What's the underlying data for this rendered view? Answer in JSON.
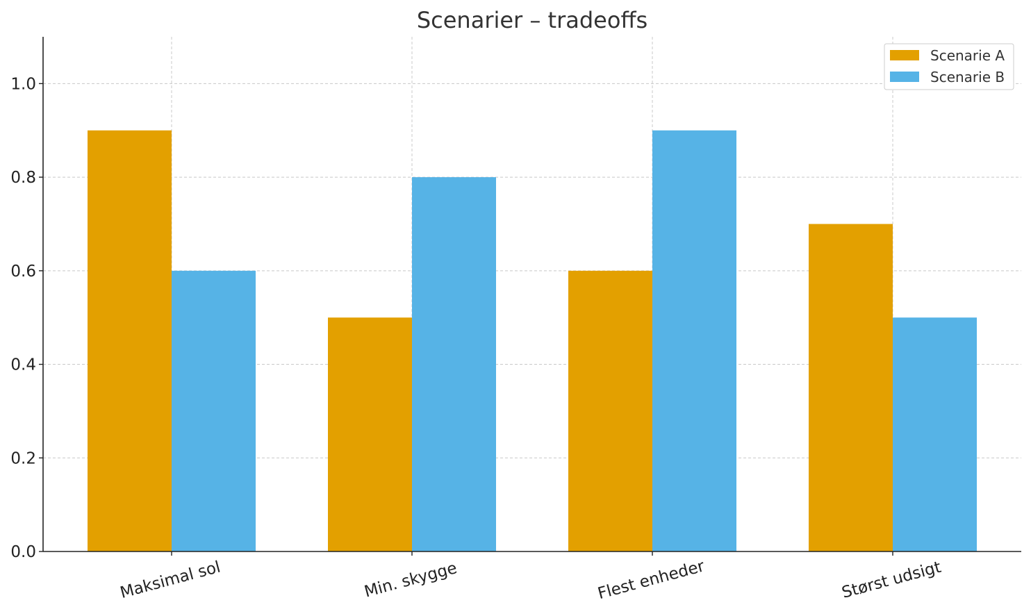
{
  "chart_data": {
    "type": "bar",
    "title": "Scenarier – tradeoffs",
    "xlabel": "",
    "ylabel": "",
    "categories": [
      "Maksimal sol",
      "Min. skygge",
      "Flest enheder",
      "Størst udsigt"
    ],
    "series": [
      {
        "name": "Scenarie A",
        "color": "#E3A000",
        "values": [
          0.9,
          0.5,
          0.6,
          0.7
        ]
      },
      {
        "name": "Scenarie B",
        "color": "#56B3E6",
        "values": [
          0.6,
          0.8,
          0.9,
          0.5
        ]
      }
    ],
    "ylim": [
      0,
      1.1
    ],
    "yticks": [
      "0.0",
      "0.2",
      "0.4",
      "0.6",
      "0.8",
      "1.0"
    ],
    "grid": true,
    "legend_position": "top-right"
  }
}
